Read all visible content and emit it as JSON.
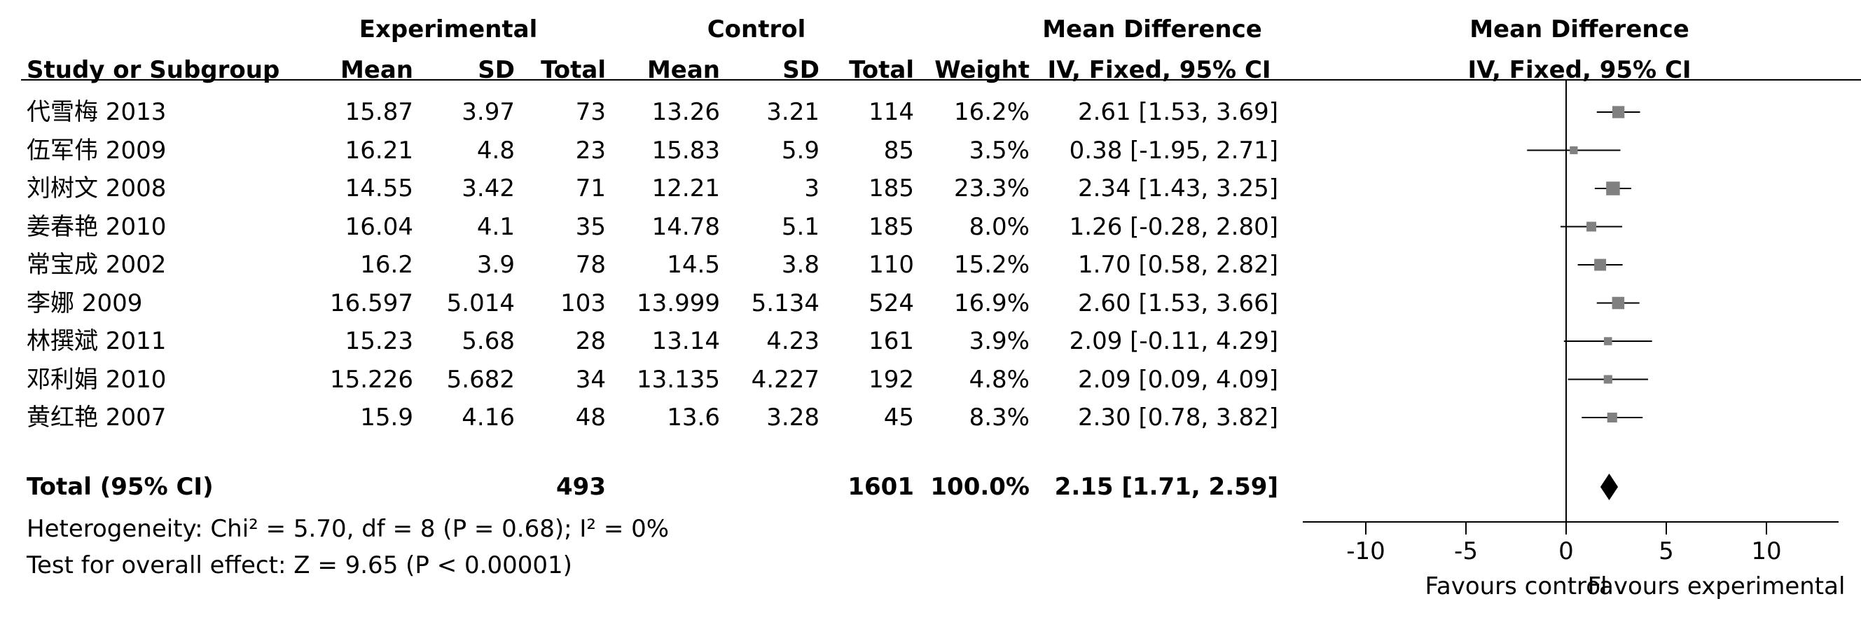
{
  "headers": {
    "experimental": "Experimental",
    "control": "Control",
    "md_title": "Mean Difference",
    "md_subtitle": "IV, Fixed, 95% CI",
    "plot_title": "Mean Difference",
    "plot_subtitle": "IV, Fixed, 95% CI",
    "study": "Study or Subgroup",
    "mean": "Mean",
    "sd": "SD",
    "total": "Total",
    "weight": "Weight"
  },
  "studies": [
    {
      "name": "代雪梅 2013",
      "e_mean": "15.87",
      "e_sd": "3.97",
      "e_total": "73",
      "c_mean": "13.26",
      "c_sd": "3.21",
      "c_total": "114",
      "weight": "16.2%",
      "ci": "2.61 [1.53, 3.69]"
    },
    {
      "name": "伍军伟 2009",
      "e_mean": "16.21",
      "e_sd": "4.8",
      "e_total": "23",
      "c_mean": "15.83",
      "c_sd": "5.9",
      "c_total": "85",
      "weight": "3.5%",
      "ci": "0.38 [-1.95, 2.71]"
    },
    {
      "name": "刘树文 2008",
      "e_mean": "14.55",
      "e_sd": "3.42",
      "e_total": "71",
      "c_mean": "12.21",
      "c_sd": "3",
      "c_total": "185",
      "weight": "23.3%",
      "ci": "2.34 [1.43, 3.25]"
    },
    {
      "name": "姜春艳 2010",
      "e_mean": "16.04",
      "e_sd": "4.1",
      "e_total": "35",
      "c_mean": "14.78",
      "c_sd": "5.1",
      "c_total": "185",
      "weight": "8.0%",
      "ci": "1.26 [-0.28, 2.80]"
    },
    {
      "name": "常宝成 2002",
      "e_mean": "16.2",
      "e_sd": "3.9",
      "e_total": "78",
      "c_mean": "14.5",
      "c_sd": "3.8",
      "c_total": "110",
      "weight": "15.2%",
      "ci": "1.70 [0.58, 2.82]"
    },
    {
      "name": "李娜 2009",
      "e_mean": "16.597",
      "e_sd": "5.014",
      "e_total": "103",
      "c_mean": "13.999",
      "c_sd": "5.134",
      "c_total": "524",
      "weight": "16.9%",
      "ci": "2.60 [1.53, 3.66]"
    },
    {
      "name": "林撰斌 2011",
      "e_mean": "15.23",
      "e_sd": "5.68",
      "e_total": "28",
      "c_mean": "13.14",
      "c_sd": "4.23",
      "c_total": "161",
      "weight": "3.9%",
      "ci": "2.09 [-0.11, 4.29]"
    },
    {
      "name": "邓利娟 2010",
      "e_mean": "15.226",
      "e_sd": "5.682",
      "e_total": "34",
      "c_mean": "13.135",
      "c_sd": "4.227",
      "c_total": "192",
      "weight": "4.8%",
      "ci": "2.09 [0.09, 4.09]"
    },
    {
      "name": "黄红艳 2007",
      "e_mean": "15.9",
      "e_sd": "4.16",
      "e_total": "48",
      "c_mean": "13.6",
      "c_sd": "3.28",
      "c_total": "45",
      "weight": "8.3%",
      "ci": "2.30 [0.78, 3.82]"
    }
  ],
  "total": {
    "label": "Total (95% CI)",
    "e_total": "493",
    "c_total": "1601",
    "weight": "100.0%",
    "ci": "2.15 [1.71, 2.59]"
  },
  "heterogeneity": "Heterogeneity: Chi² = 5.70, df = 8 (P = 0.68); I² = 0%",
  "overall_effect": "Test for overall effect: Z = 9.65 (P < 0.00001)",
  "chart_data": {
    "type": "forest",
    "xlim": [
      -10,
      10
    ],
    "xticks": [
      -10,
      -5,
      0,
      5,
      10
    ],
    "xlabel_left": "Favours control",
    "xlabel_right": "Favours experimental",
    "marker_color": "#808080",
    "line_color": "#000000",
    "points": [
      {
        "label": "代雪梅 2013",
        "md": 2.61,
        "lo": 1.53,
        "hi": 3.69,
        "weight": 16.2
      },
      {
        "label": "伍军伟 2009",
        "md": 0.38,
        "lo": -1.95,
        "hi": 2.71,
        "weight": 3.5
      },
      {
        "label": "刘树文 2008",
        "md": 2.34,
        "lo": 1.43,
        "hi": 3.25,
        "weight": 23.3
      },
      {
        "label": "姜春艳 2010",
        "md": 1.26,
        "lo": -0.28,
        "hi": 2.8,
        "weight": 8.0
      },
      {
        "label": "常宝成 2002",
        "md": 1.7,
        "lo": 0.58,
        "hi": 2.82,
        "weight": 15.2
      },
      {
        "label": "李娜 2009",
        "md": 2.6,
        "lo": 1.53,
        "hi": 3.66,
        "weight": 16.9
      },
      {
        "label": "林撰斌 2011",
        "md": 2.09,
        "lo": -0.11,
        "hi": 4.29,
        "weight": 3.9
      },
      {
        "label": "邓利娟 2010",
        "md": 2.09,
        "lo": 0.09,
        "hi": 4.09,
        "weight": 4.8
      },
      {
        "label": "黄红艳 2007",
        "md": 2.3,
        "lo": 0.78,
        "hi": 3.82,
        "weight": 8.3
      }
    ],
    "pooled": {
      "md": 2.15,
      "lo": 1.71,
      "hi": 2.59
    }
  }
}
